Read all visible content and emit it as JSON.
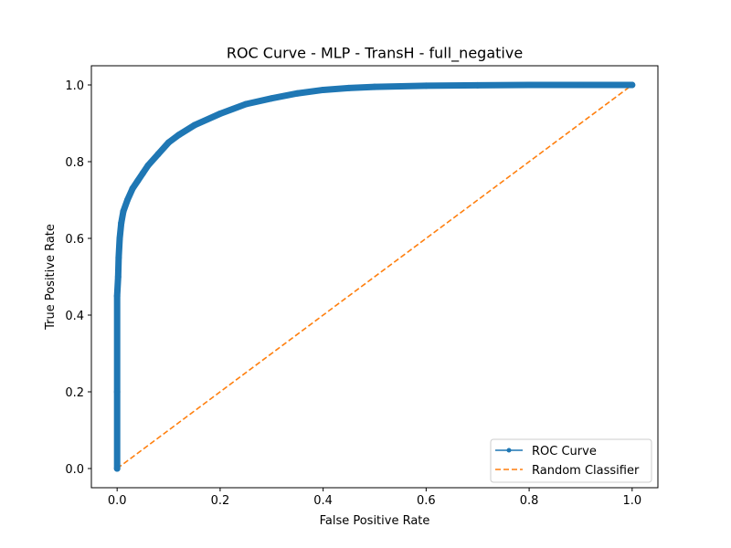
{
  "chart_data": {
    "type": "line",
    "title": "ROC Curve - MLP - TransH - full_negative",
    "xlabel": "False Positive Rate",
    "ylabel": "True Positive Rate",
    "xlim": [
      -0.05,
      1.05
    ],
    "ylim": [
      -0.05,
      1.05
    ],
    "xticks": [
      0.0,
      0.2,
      0.4,
      0.6,
      0.8,
      1.0
    ],
    "yticks": [
      0.0,
      0.2,
      0.4,
      0.6,
      0.8,
      1.0
    ],
    "xtick_labels": [
      "0.0",
      "0.2",
      "0.4",
      "0.6",
      "0.8",
      "1.0"
    ],
    "ytick_labels": [
      "0.0",
      "0.2",
      "0.4",
      "0.6",
      "0.8",
      "1.0"
    ],
    "grid": false,
    "legend_position": "lower-right",
    "series": [
      {
        "name": "ROC Curve",
        "style": "solid line with dot markers",
        "color": "#1f77b4",
        "x": [
          0.0,
          0.0,
          0.0,
          0.002,
          0.003,
          0.005,
          0.008,
          0.012,
          0.02,
          0.03,
          0.04,
          0.05,
          0.06,
          0.08,
          0.1,
          0.12,
          0.15,
          0.2,
          0.25,
          0.3,
          0.35,
          0.4,
          0.45,
          0.5,
          0.6,
          0.7,
          0.8,
          0.9,
          1.0
        ],
        "y": [
          0.0,
          0.2,
          0.45,
          0.5,
          0.55,
          0.6,
          0.64,
          0.67,
          0.7,
          0.73,
          0.75,
          0.77,
          0.79,
          0.82,
          0.85,
          0.87,
          0.895,
          0.925,
          0.95,
          0.965,
          0.978,
          0.987,
          0.992,
          0.995,
          0.998,
          0.999,
          1.0,
          1.0,
          1.0
        ]
      },
      {
        "name": "Random Classifier",
        "style": "dashed",
        "color": "#ff7f0e",
        "x": [
          0.0,
          1.0
        ],
        "y": [
          0.0,
          1.0
        ]
      }
    ]
  }
}
